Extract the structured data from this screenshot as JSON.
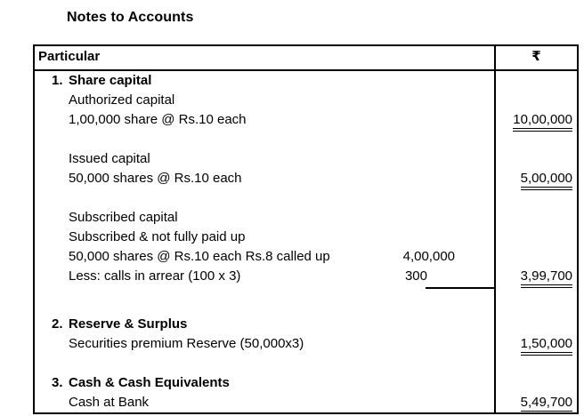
{
  "title": "Notes to Accounts",
  "table": {
    "header": {
      "particulars": "Particular",
      "amount": "₹"
    },
    "rows": [
      {
        "num": "1.",
        "text": "Share capital",
        "bold": true
      },
      {
        "text": "Authorized capital"
      },
      {
        "text": "1,00,000 share @ Rs.10 each",
        "amount": "10,00,000"
      },
      {
        "blank": true
      },
      {
        "text": "Issued capital"
      },
      {
        "text": "50,000 shares @ Rs.10 each",
        "amount": "5,00,000"
      },
      {
        "blank": true
      },
      {
        "text": "Subscribed capital"
      },
      {
        "text": "Subscribed & not fully paid up"
      },
      {
        "text": "50,000 shares @ Rs.10 each Rs.8 called up",
        "inner_amount": "4,00,000"
      },
      {
        "text": "Less: calls in arrear (100 x 3)",
        "inner_amount": "300",
        "amount": "3,99,700"
      },
      {
        "blank": true
      },
      {
        "num": "2.",
        "text": "Reserve & Surplus",
        "bold": true
      },
      {
        "text": "Securities premium Reserve (50,000x3)",
        "amount": "1,50,000"
      },
      {
        "blank": true
      },
      {
        "num": "3.",
        "text": "Cash & Cash Equivalents",
        "bold": true
      },
      {
        "text": "Cash at Bank",
        "amount": "5,49,700"
      }
    ]
  }
}
